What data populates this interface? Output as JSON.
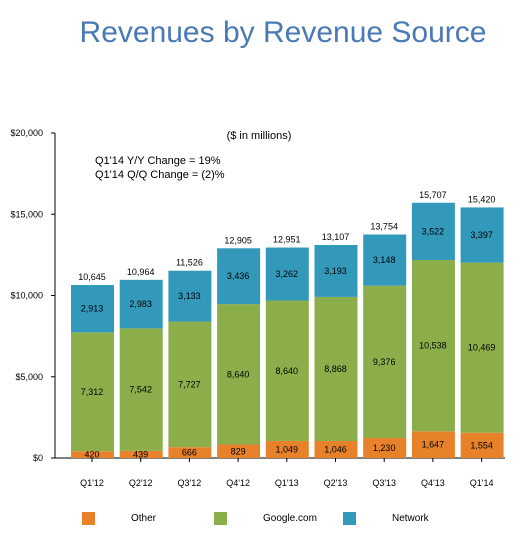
{
  "title": "Revenues by Revenue Source",
  "chart_data": {
    "type": "bar",
    "stacked": true,
    "subtitle": "($ in millions)",
    "annotations": [
      "Q1'14 Y/Y Change = 19%",
      "Q1'14 Q/Q Change = (2)%"
    ],
    "categories": [
      "Q1'12",
      "Q2'12",
      "Q3'12",
      "Q4'12",
      "Q1'13",
      "Q2'13",
      "Q3'13",
      "Q4'13",
      "Q1'14"
    ],
    "series": [
      {
        "name": "Other",
        "color": "#e8822a",
        "values": [
          420,
          439,
          666,
          829,
          1049,
          1046,
          1230,
          1647,
          1554
        ],
        "labels": [
          "420",
          "439",
          "666",
          "829",
          "1,049",
          "1,046",
          "1,230",
          "1,647",
          "1,554"
        ]
      },
      {
        "name": "Google.com",
        "color": "#8bae4a",
        "values": [
          7312,
          7542,
          7727,
          8640,
          8640,
          8868,
          9376,
          10538,
          10469
        ],
        "labels": [
          "7,312",
          "7,542",
          "7,727",
          "8,640",
          "8,640",
          "8,868",
          "9,376",
          "10,538",
          "10,469"
        ]
      },
      {
        "name": "Network",
        "color": "#3399bb",
        "values": [
          2913,
          2983,
          3133,
          3436,
          3262,
          3193,
          3148,
          3522,
          3397
        ],
        "labels": [
          "2,913",
          "2,983",
          "3,133",
          "3,436",
          "3,262",
          "3,193",
          "3,148",
          "3,522",
          "3,397"
        ]
      }
    ],
    "totals": [
      10645,
      10964,
      11526,
      12905,
      12951,
      13107,
      13754,
      15707,
      15420
    ],
    "total_labels": [
      "10,645",
      "10,964",
      "11,526",
      "12,905",
      "12,951",
      "13,107",
      "13,754",
      "15,707",
      "15,420"
    ],
    "yticks": [
      0,
      5000,
      10000,
      15000,
      20000
    ],
    "ytick_labels": [
      "$0",
      "$5,000",
      "$10,000",
      "$15,000",
      "$20,000"
    ],
    "ylim": [
      0,
      20000
    ],
    "grid": false,
    "legend_position": "bottom"
  }
}
